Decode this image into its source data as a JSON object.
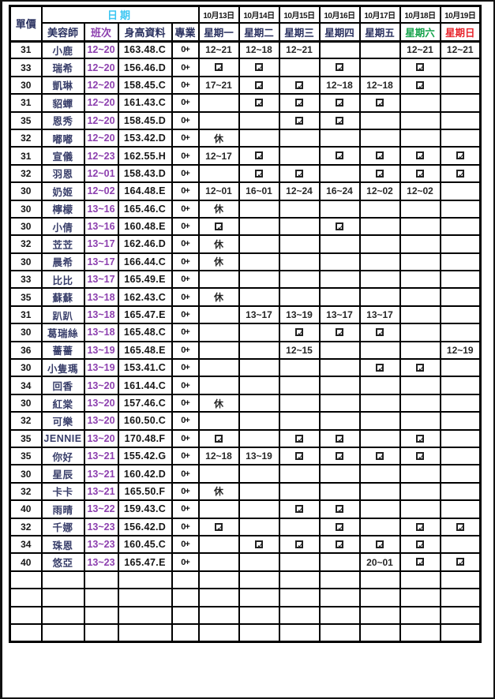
{
  "header": {
    "price": "單價",
    "date_group": "日期",
    "beautician": "美容師",
    "shift": "班次",
    "profile": "身高資料",
    "spec": "專業",
    "dates": [
      "10月13日",
      "10月14日",
      "10月15日",
      "10月16日",
      "10月17日",
      "10月18日",
      "10月19日"
    ],
    "weekdays": [
      {
        "label": "星期一",
        "color": "#2a3160"
      },
      {
        "label": "星期二",
        "color": "#2a3160"
      },
      {
        "label": "星期三",
        "color": "#2a3160"
      },
      {
        "label": "星期四",
        "color": "#2a3160"
      },
      {
        "label": "星期五",
        "color": "#2a3160"
      },
      {
        "label": "星期六",
        "color": "#13a24a"
      },
      {
        "label": "星期日",
        "color": "#e8232b"
      }
    ]
  },
  "symbols": {
    "checked": "☑",
    "check_mark": "✓",
    "rest_day": "休"
  },
  "colors": {
    "header_navy": "#2a3160",
    "date_group_cyan": "#3bc6f2",
    "shift_purple": "#8c3fae",
    "name_navy": "#383e6a",
    "text_black": "#161616",
    "saturday_green": "#13a24a",
    "sunday_red": "#e8232b",
    "grid": "#000000"
  },
  "rows": [
    {
      "price": "31",
      "name": "小鹿",
      "shift": "12~20",
      "profile": "163.48.C",
      "spec": "0+",
      "days": [
        "12~21",
        "12~18",
        "12~21",
        "",
        "",
        "12~21",
        "12~21"
      ]
    },
    {
      "price": "33",
      "name": "瑞希",
      "shift": "12~20",
      "profile": "156.46.D",
      "spec": "0+",
      "days": [
        "☑",
        "☑",
        "",
        "☑",
        "",
        "☑",
        ""
      ]
    },
    {
      "price": "30",
      "name": "凱琳",
      "shift": "12~20",
      "profile": "158.45.C",
      "spec": "0+",
      "days": [
        "17~21",
        "☑",
        "☑",
        "12~18",
        "12~18",
        "☑",
        ""
      ]
    },
    {
      "price": "31",
      "name": "貂蟬",
      "shift": "12~20",
      "profile": "161.43.C",
      "spec": "0+",
      "days": [
        "",
        "☑",
        "☑",
        "☑",
        "☑",
        "",
        ""
      ]
    },
    {
      "price": "35",
      "name": "恩秀",
      "shift": "12~20",
      "profile": "158.45.D",
      "spec": "0+",
      "days": [
        "",
        "",
        "☑",
        "☑",
        "",
        "",
        ""
      ]
    },
    {
      "price": "32",
      "name": "嘟嘟",
      "shift": "12~20",
      "profile": "153.42.D",
      "spec": "0+",
      "days": [
        "休",
        "",
        "",
        "",
        "",
        "",
        ""
      ]
    },
    {
      "price": "31",
      "name": "宣儀",
      "shift": "12~23",
      "profile": "162.55.H",
      "spec": "0+",
      "days": [
        "12~17",
        "☑",
        "",
        "☑",
        "☑",
        "☑",
        "☑"
      ]
    },
    {
      "price": "32",
      "name": "羽恩",
      "shift": "12~01",
      "profile": "158.43.D",
      "spec": "0+",
      "days": [
        "",
        "☑",
        "☑",
        "",
        "☑",
        "☑",
        "☑"
      ]
    },
    {
      "price": "30",
      "name": "奶姬",
      "shift": "12~02",
      "profile": "164.48.E",
      "spec": "0+",
      "days": [
        "12~01",
        "16~01",
        "12~24",
        "16~24",
        "12~02",
        "12~02",
        ""
      ]
    },
    {
      "price": "30",
      "name": "檸檬",
      "shift": "13~16",
      "profile": "165.46.C",
      "spec": "0+",
      "days": [
        "休",
        "",
        "",
        "",
        "",
        "",
        ""
      ]
    },
    {
      "price": "30",
      "name": "小倩",
      "shift": "13~16",
      "profile": "160.48.E",
      "spec": "0+",
      "days": [
        "☑",
        "",
        "",
        "☑",
        "",
        "",
        ""
      ]
    },
    {
      "price": "32",
      "name": "苙苙",
      "shift": "13~17",
      "profile": "162.46.D",
      "spec": "0+",
      "days": [
        "休",
        "",
        "",
        "",
        "",
        "",
        ""
      ]
    },
    {
      "price": "30",
      "name": "晨希",
      "shift": "13~17",
      "profile": "166.44.C",
      "spec": "0+",
      "days": [
        "休",
        "",
        "",
        "",
        "",
        "",
        ""
      ]
    },
    {
      "price": "33",
      "name": "比比",
      "shift": "13~17",
      "profile": "165.49.E",
      "spec": "0+",
      "days": [
        "",
        "",
        "",
        "",
        "",
        "",
        ""
      ]
    },
    {
      "price": "35",
      "name": "蘇蘇",
      "shift": "13~18",
      "profile": "162.43.C",
      "spec": "0+",
      "days": [
        "休",
        "",
        "",
        "",
        "",
        "",
        ""
      ]
    },
    {
      "price": "31",
      "name": "趴趴",
      "shift": "13~18",
      "profile": "165.47.E",
      "spec": "0+",
      "days": [
        "",
        "13~17",
        "13~19",
        "13~17",
        "13~17",
        "",
        ""
      ]
    },
    {
      "price": "30",
      "name": "葛瑞絲",
      "shift": "13~18",
      "profile": "165.48.C",
      "spec": "0+",
      "days": [
        "",
        "",
        "☑",
        "☑",
        "☑",
        "",
        ""
      ]
    },
    {
      "price": "36",
      "name": "薔薔",
      "shift": "13~19",
      "profile": "165.48.E",
      "spec": "0+",
      "days": [
        "",
        "",
        "12~15",
        "",
        "",
        "",
        "12~19"
      ]
    },
    {
      "price": "30",
      "name": "小隻瑪",
      "shift": "13~19",
      "profile": "153.41.C",
      "spec": "0+",
      "days": [
        "",
        "",
        "",
        "",
        "☑",
        "☑",
        ""
      ]
    },
    {
      "price": "34",
      "name": "回香",
      "shift": "13~20",
      "profile": "161.44.C",
      "spec": "0+",
      "days": [
        "",
        "",
        "",
        "",
        "",
        "",
        ""
      ]
    },
    {
      "price": "30",
      "name": "紅棠",
      "shift": "13~20",
      "profile": "157.46.C",
      "spec": "0+",
      "days": [
        "休",
        "",
        "",
        "",
        "",
        "",
        ""
      ]
    },
    {
      "price": "32",
      "name": "可樂",
      "shift": "13~20",
      "profile": "160.50.C",
      "spec": "0+",
      "days": [
        "",
        "",
        "",
        "",
        "",
        "",
        ""
      ]
    },
    {
      "price": "35",
      "name": "JENNIE",
      "shift": "13~20",
      "profile": "170.48.F",
      "spec": "0+",
      "days": [
        "☑",
        "",
        "☑",
        "☑",
        "",
        "☑",
        ""
      ]
    },
    {
      "price": "35",
      "name": "你好",
      "shift": "13~21",
      "profile": "155.42.G",
      "spec": "0+",
      "days": [
        "12~18",
        "13~19",
        "☑",
        "☑",
        "☑",
        "☑",
        ""
      ]
    },
    {
      "price": "30",
      "name": "星辰",
      "shift": "13~21",
      "profile": "160.42.D",
      "spec": "0+",
      "days": [
        "",
        "",
        "",
        "",
        "",
        "",
        ""
      ]
    },
    {
      "price": "32",
      "name": "卡卡",
      "shift": "13~21",
      "profile": "165.50.F",
      "spec": "0+",
      "days": [
        "休",
        "",
        "",
        "",
        "",
        "",
        ""
      ]
    },
    {
      "price": "40",
      "name": "雨晴",
      "shift": "13~22",
      "profile": "159.43.C",
      "spec": "0+",
      "days": [
        "",
        "",
        "☑",
        "☑",
        "",
        "",
        ""
      ]
    },
    {
      "price": "32",
      "name": "千娜",
      "shift": "13~23",
      "profile": "156.42.D",
      "spec": "0+",
      "days": [
        "☑",
        "",
        "",
        "☑",
        "",
        "☑",
        "☑"
      ]
    },
    {
      "price": "34",
      "name": "珠恩",
      "shift": "13~23",
      "profile": "160.45.C",
      "spec": "0+",
      "days": [
        "",
        "☑",
        "☑",
        "☑",
        "☑",
        "☑",
        ""
      ]
    },
    {
      "price": "40",
      "name": "悠亞",
      "shift": "13~23",
      "profile": "165.47.E",
      "spec": "0+",
      "days": [
        "",
        "",
        "",
        "",
        "20~01",
        "☑",
        "☑"
      ]
    }
  ],
  "empty_row_count": 4
}
